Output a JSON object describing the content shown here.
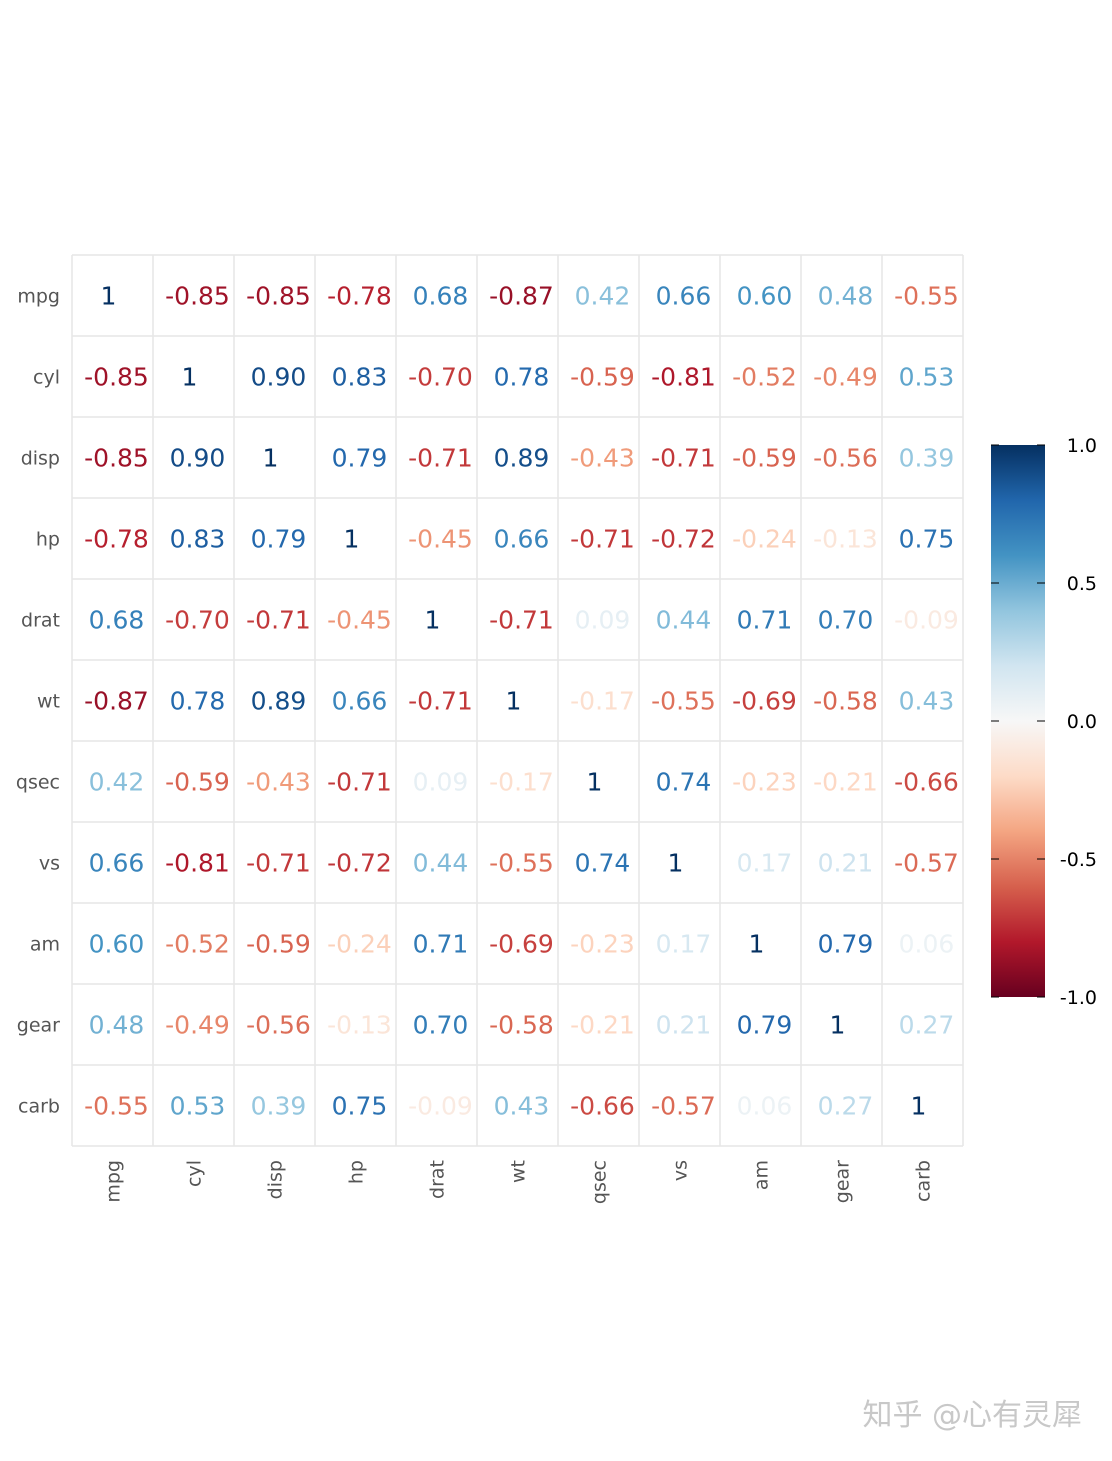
{
  "chart_data": {
    "type": "heatmap",
    "variables": [
      "mpg",
      "cyl",
      "disp",
      "hp",
      "drat",
      "wt",
      "qsec",
      "vs",
      "am",
      "gear",
      "carb"
    ],
    "cells": [
      [
        "1",
        "-0.85",
        "-0.85",
        "-0.78",
        "0.68",
        "-0.87",
        "0.42",
        "0.66",
        "0.60",
        "0.48",
        "-0.55"
      ],
      [
        "-0.85",
        "1",
        "0.90",
        "0.83",
        "-0.70",
        "0.78",
        "-0.59",
        "-0.81",
        "-0.52",
        "-0.49",
        "0.53"
      ],
      [
        "-0.85",
        "0.90",
        "1",
        "0.79",
        "-0.71",
        "0.89",
        "-0.43",
        "-0.71",
        "-0.59",
        "-0.56",
        "0.39"
      ],
      [
        "-0.78",
        "0.83",
        "0.79",
        "1",
        "-0.45",
        "0.66",
        "-0.71",
        "-0.72",
        "-0.24",
        "-0.13",
        "0.75"
      ],
      [
        "0.68",
        "-0.70",
        "-0.71",
        "-0.45",
        "1",
        "-0.71",
        "0.09",
        "0.44",
        "0.71",
        "0.70",
        "-0.09"
      ],
      [
        "-0.87",
        "0.78",
        "0.89",
        "0.66",
        "-0.71",
        "1",
        "-0.17",
        "-0.55",
        "-0.69",
        "-0.58",
        "0.43"
      ],
      [
        "0.42",
        "-0.59",
        "-0.43",
        "-0.71",
        "0.09",
        "-0.17",
        "1",
        "0.74",
        "-0.23",
        "-0.21",
        "-0.66"
      ],
      [
        "0.66",
        "-0.81",
        "-0.71",
        "-0.72",
        "0.44",
        "-0.55",
        "0.74",
        "1",
        "0.17",
        "0.21",
        "-0.57"
      ],
      [
        "0.60",
        "-0.52",
        "-0.59",
        "-0.24",
        "0.71",
        "-0.69",
        "-0.23",
        "0.17",
        "1",
        "0.79",
        "0.06"
      ],
      [
        "0.48",
        "-0.49",
        "-0.56",
        "-0.13",
        "0.70",
        "-0.58",
        "-0.21",
        "0.21",
        "0.79",
        "1",
        "0.27"
      ],
      [
        "-0.55",
        "0.53",
        "0.39",
        "0.75",
        "-0.09",
        "0.43",
        "-0.66",
        "-0.57",
        "0.06",
        "0.27",
        "1"
      ]
    ],
    "color_scale": {
      "range": [
        -1,
        1
      ],
      "ticks": [
        "1.0",
        "0.5",
        "0.0",
        "-0.5",
        "-1.0"
      ],
      "stops": [
        "#67001F",
        "#B2182B",
        "#D6604D",
        "#F4A582",
        "#FDDBC7",
        "#F7F7F7",
        "#D1E5F0",
        "#92C5DE",
        "#4393C3",
        "#2166AC",
        "#053061"
      ]
    },
    "grid_color": "#e6e6e6",
    "legend_position": "right"
  },
  "watermark": "知乎 @心有灵犀"
}
